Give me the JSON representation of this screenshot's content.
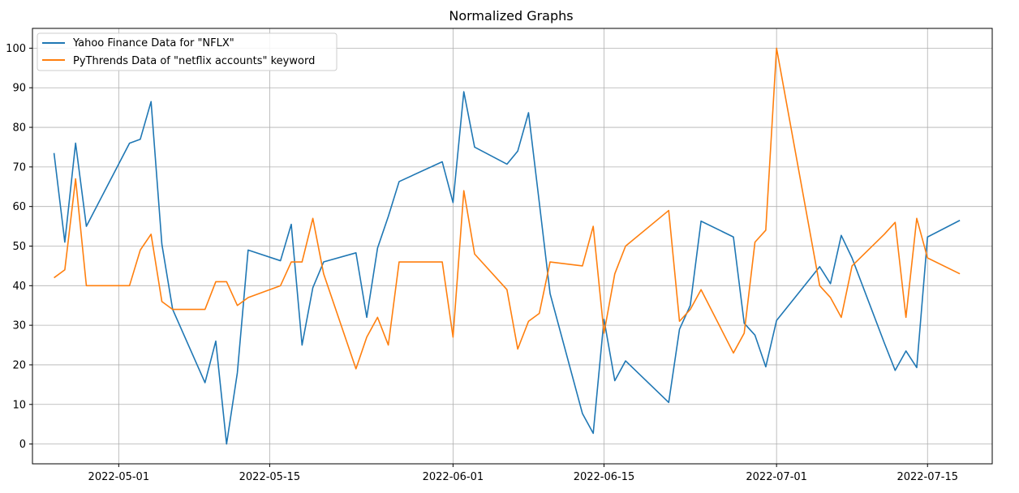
{
  "chart_data": {
    "type": "line",
    "title": "Normalized Graphs",
    "xlabel": "",
    "ylabel": "",
    "grid": true,
    "legend_position": "top-left",
    "xlim": [
      "2022-04-23",
      "2022-07-21"
    ],
    "ylim": [
      -5,
      105
    ],
    "x_ticks": [
      "2022-05-01",
      "2022-05-15",
      "2022-06-01",
      "2022-06-15",
      "2022-07-01",
      "2022-07-15"
    ],
    "y_ticks": [
      0,
      10,
      20,
      30,
      40,
      50,
      60,
      70,
      80,
      90,
      100
    ],
    "series": [
      {
        "name": "Yahoo Finance Data for \"NFLX\"",
        "color": "#1f77b4",
        "points": [
          [
            "2022-04-25",
            73.5
          ],
          [
            "2022-04-26",
            51
          ],
          [
            "2022-04-27",
            76
          ],
          [
            "2022-04-28",
            55
          ],
          [
            "2022-05-02",
            76
          ],
          [
            "2022-05-03",
            77
          ],
          [
            "2022-05-04",
            86.5
          ],
          [
            "2022-05-05",
            50.5
          ],
          [
            "2022-05-06",
            34
          ],
          [
            "2022-05-09",
            15.5
          ],
          [
            "2022-05-10",
            26
          ],
          [
            "2022-05-11",
            0
          ],
          [
            "2022-05-12",
            18
          ],
          [
            "2022-05-13",
            49
          ],
          [
            "2022-05-16",
            46.3
          ],
          [
            "2022-05-17",
            55.5
          ],
          [
            "2022-05-18",
            25
          ],
          [
            "2022-05-19",
            39.5
          ],
          [
            "2022-05-20",
            46
          ],
          [
            "2022-05-23",
            48.3
          ],
          [
            "2022-05-24",
            32
          ],
          [
            "2022-05-25",
            49.5
          ],
          [
            "2022-05-26",
            57.5
          ],
          [
            "2022-05-27",
            66.3
          ],
          [
            "2022-05-31",
            71.3
          ],
          [
            "2022-06-01",
            61
          ],
          [
            "2022-06-02",
            89
          ],
          [
            "2022-06-03",
            75
          ],
          [
            "2022-06-06",
            70.7
          ],
          [
            "2022-06-07",
            74
          ],
          [
            "2022-06-08",
            83.7
          ],
          [
            "2022-06-09",
            61
          ],
          [
            "2022-06-10",
            38
          ],
          [
            "2022-06-13",
            7.7
          ],
          [
            "2022-06-14",
            2.7
          ],
          [
            "2022-06-15",
            31.5
          ],
          [
            "2022-06-16",
            16
          ],
          [
            "2022-06-17",
            21
          ],
          [
            "2022-06-21",
            10.5
          ],
          [
            "2022-06-22",
            29
          ],
          [
            "2022-06-23",
            35
          ],
          [
            "2022-06-24",
            56.3
          ],
          [
            "2022-06-27",
            52.3
          ],
          [
            "2022-06-28",
            30.5
          ],
          [
            "2022-06-29",
            27.5
          ],
          [
            "2022-06-30",
            19.5
          ],
          [
            "2022-07-01",
            31.2
          ],
          [
            "2022-07-05",
            44.8
          ],
          [
            "2022-07-06",
            40.5
          ],
          [
            "2022-07-07",
            52.7
          ],
          [
            "2022-07-08",
            47
          ],
          [
            "2022-07-11",
            25.5
          ],
          [
            "2022-07-12",
            18.6
          ],
          [
            "2022-07-13",
            23.5
          ],
          [
            "2022-07-14",
            19.3
          ],
          [
            "2022-07-15",
            52.3
          ],
          [
            "2022-07-18",
            56.5
          ]
        ]
      },
      {
        "name": "PyThrends Data of \"netflix accounts\" keyword",
        "color": "#ff7f0e",
        "points": [
          [
            "2022-04-25",
            42
          ],
          [
            "2022-04-26",
            44
          ],
          [
            "2022-04-27",
            67
          ],
          [
            "2022-04-28",
            40
          ],
          [
            "2022-05-01",
            40
          ],
          [
            "2022-05-02",
            40
          ],
          [
            "2022-05-03",
            49
          ],
          [
            "2022-05-04",
            53
          ],
          [
            "2022-05-05",
            36
          ],
          [
            "2022-05-06",
            34
          ],
          [
            "2022-05-09",
            34
          ],
          [
            "2022-05-10",
            41
          ],
          [
            "2022-05-11",
            41
          ],
          [
            "2022-05-12",
            35
          ],
          [
            "2022-05-13",
            37
          ],
          [
            "2022-05-16",
            40
          ],
          [
            "2022-05-17",
            46
          ],
          [
            "2022-05-18",
            46
          ],
          [
            "2022-05-19",
            57
          ],
          [
            "2022-05-20",
            43
          ],
          [
            "2022-05-23",
            19
          ],
          [
            "2022-05-24",
            27
          ],
          [
            "2022-05-25",
            32
          ],
          [
            "2022-05-26",
            25
          ],
          [
            "2022-05-27",
            46
          ],
          [
            "2022-05-31",
            46
          ],
          [
            "2022-06-01",
            27
          ],
          [
            "2022-06-02",
            64
          ],
          [
            "2022-06-03",
            48
          ],
          [
            "2022-06-06",
            39
          ],
          [
            "2022-06-07",
            24
          ],
          [
            "2022-06-08",
            31
          ],
          [
            "2022-06-09",
            33
          ],
          [
            "2022-06-10",
            46
          ],
          [
            "2022-06-13",
            45
          ],
          [
            "2022-06-14",
            55
          ],
          [
            "2022-06-15",
            28
          ],
          [
            "2022-06-16",
            43
          ],
          [
            "2022-06-17",
            50
          ],
          [
            "2022-06-21",
            59
          ],
          [
            "2022-06-22",
            31
          ],
          [
            "2022-06-23",
            34
          ],
          [
            "2022-06-24",
            39
          ],
          [
            "2022-06-27",
            23
          ],
          [
            "2022-06-28",
            28
          ],
          [
            "2022-06-29",
            51
          ],
          [
            "2022-06-30",
            54
          ],
          [
            "2022-07-01",
            100
          ],
          [
            "2022-07-05",
            40
          ],
          [
            "2022-07-06",
            37
          ],
          [
            "2022-07-07",
            32
          ],
          [
            "2022-07-08",
            45
          ],
          [
            "2022-07-11",
            53
          ],
          [
            "2022-07-12",
            56
          ],
          [
            "2022-07-13",
            32
          ],
          [
            "2022-07-14",
            57
          ],
          [
            "2022-07-15",
            47
          ],
          [
            "2022-07-18",
            43
          ]
        ]
      }
    ]
  }
}
